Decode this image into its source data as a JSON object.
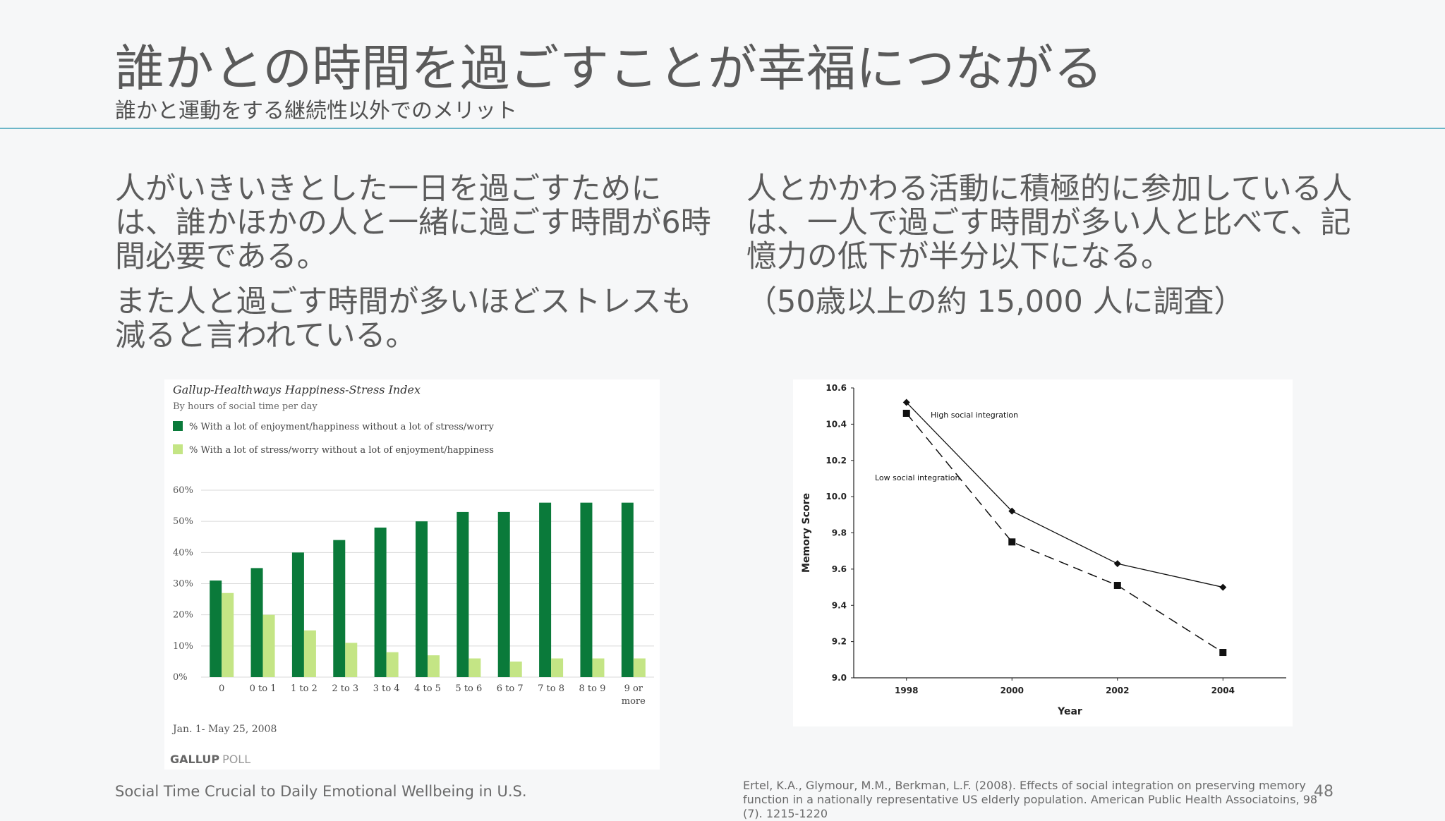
{
  "slide": {
    "title": "誰かとの時間を過ごすことが幸福につながる",
    "subtitle": "誰かと運動をする継続性以外でのメリット",
    "left_paragraphs": [
      "人がいきいきとした一日を過ごすためには、誰かほかの人と一緒に過ごす時間が6時間必要である。",
      "また人と過ごす時間が多いほどストレスも減ると言われている。"
    ],
    "right_paragraphs": [
      "人とかかわる活動に積極的に参加している人は、一人で過ごす時間が多い人と比べて、記憶力の低下が半分以下になる。",
      "（50歳以上の約 15,000 人に調査）"
    ],
    "left_source": "Social Time Crucial to Daily Emotional Wellbeing in U.S.",
    "right_source": "Ertel, K.A., Glymour, M.M., Berkman, L.F. (2008). Effects of social integration on preserving memory function in a nationally representative US elderly population. American Public Health Associatoins, 98 (7). 1215-1220",
    "page_number": "48"
  },
  "chart_data": [
    {
      "type": "bar",
      "title": "Gallup-Healthways Happiness-Stress Index",
      "subtitle": "By hours of social time per day",
      "categories": [
        "0",
        "0 to 1",
        "1 to 2",
        "2 to 3",
        "3 to 4",
        "4 to 5",
        "5 to 6",
        "6 to 7",
        "7 to 8",
        "8 to 9",
        "9 or more"
      ],
      "series": [
        {
          "name": "% With a lot of enjoyment/happiness without a lot of stress/worry",
          "color": "#0a7a3a",
          "values": [
            31,
            35,
            40,
            44,
            48,
            50,
            53,
            53,
            56,
            56,
            56
          ]
        },
        {
          "name": "% With a lot of stress/worry without a lot of enjoyment/happiness",
          "color": "#c4e585",
          "values": [
            27,
            20,
            15,
            11,
            8,
            7,
            6,
            5,
            6,
            6,
            6
          ]
        }
      ],
      "ylim": [
        0,
        60
      ],
      "yticks": [
        "0%",
        "10%",
        "20%",
        "30%",
        "40%",
        "50%",
        "60%"
      ],
      "date_note": "Jan. 1- May 25, 2008",
      "brand": "GALLUP",
      "brand_suffix": "POLL",
      "grid": true,
      "legend": "top"
    },
    {
      "type": "line",
      "x": [
        1998,
        2000,
        2002,
        2004
      ],
      "series": [
        {
          "name": "High social integration",
          "values": [
            10.52,
            9.92,
            9.63,
            9.5
          ]
        },
        {
          "name": "Low social integration",
          "values": [
            10.46,
            9.75,
            9.51,
            9.14
          ]
        }
      ],
      "xlabel": "Year",
      "ylabel": "Memory Score",
      "ylim": [
        9.0,
        10.6
      ],
      "yticks": [
        "9.0",
        "9.2",
        "9.4",
        "9.6",
        "9.8",
        "10.0",
        "10.2",
        "10.4",
        "10.6"
      ],
      "xticks": [
        "1998",
        "2000",
        "2002",
        "2004"
      ],
      "grid": false
    }
  ]
}
